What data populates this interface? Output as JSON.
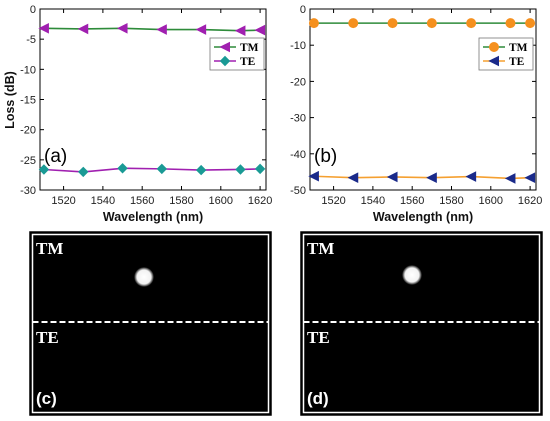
{
  "chart_data": [
    {
      "type": "line",
      "panel_label": "(a)",
      "xlabel": "Wavelength (nm)",
      "ylabel": "Loss (dB)",
      "xlim": [
        1508,
        1623
      ],
      "ylim": [
        -30,
        0
      ],
      "xticks": [
        1520,
        1540,
        1560,
        1580,
        1600,
        1620
      ],
      "yticks": [
        0,
        -5,
        -10,
        -15,
        -20,
        -25,
        -30
      ],
      "x": [
        1510,
        1530,
        1550,
        1570,
        1590,
        1610,
        1620
      ],
      "series": [
        {
          "name": "TM",
          "marker": "triangle-left",
          "line_color": "#2e8b3a",
          "marker_color": "#a020b0",
          "values": [
            -3.2,
            -3.3,
            -3.2,
            -3.4,
            -3.4,
            -3.6,
            -3.5
          ]
        },
        {
          "name": "TE",
          "marker": "diamond",
          "line_color": "#a020b0",
          "marker_color": "#1a9a95",
          "values": [
            -26.6,
            -27.0,
            -26.4,
            -26.5,
            -26.7,
            -26.6,
            -26.5
          ]
        }
      ],
      "legend": "top-right",
      "grid": false
    },
    {
      "type": "line",
      "panel_label": "(b)",
      "xlabel": "Wavelength (nm)",
      "ylabel": "",
      "xlim": [
        1508,
        1623
      ],
      "ylim": [
        -50,
        0
      ],
      "xticks": [
        1520,
        1540,
        1560,
        1580,
        1600,
        1620
      ],
      "yticks": [
        0,
        -10,
        -20,
        -30,
        -40,
        -50
      ],
      "x": [
        1510,
        1530,
        1550,
        1570,
        1590,
        1610,
        1620
      ],
      "series": [
        {
          "name": "TM",
          "marker": "circle",
          "line_color": "#2e8b3a",
          "marker_color": "#f5901e",
          "values": [
            -3.9,
            -3.9,
            -3.9,
            -3.9,
            -3.9,
            -3.9,
            -3.9
          ]
        },
        {
          "name": "TE",
          "marker": "triangle-left",
          "line_color": "#f5a030",
          "marker_color": "#1a2a8a",
          "values": [
            -46.2,
            -46.6,
            -46.4,
            -46.6,
            -46.3,
            -46.8,
            -46.6
          ]
        }
      ],
      "legend": "top-right",
      "grid": false
    }
  ],
  "image_panels": [
    {
      "panel_label": "(c)",
      "top_label": "TM",
      "bottom_label": "TE"
    },
    {
      "panel_label": "(d)",
      "top_label": "TM",
      "bottom_label": "TE"
    }
  ]
}
